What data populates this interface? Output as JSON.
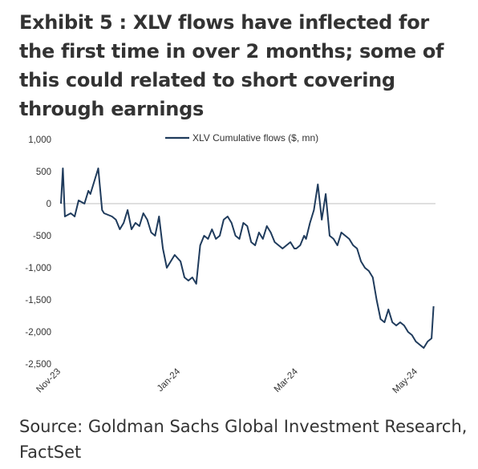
{
  "title": "Exhibit 5 : XLV flows have inflected for the first time in over 2 months; some of this could related to short covering through earnings",
  "source": "Source: Goldman Sachs Global Investment Research, FactSet",
  "colors": {
    "series": "#1f3b5c",
    "zero_line": "#bfbfbf",
    "text": "#333333"
  },
  "chart_data": {
    "type": "line",
    "legend": "top-center",
    "grid": false,
    "xlabel": "",
    "ylabel": "",
    "ylim": [
      -2500,
      1000
    ],
    "yticks": [
      1000,
      500,
      0,
      -500,
      -1000,
      -1500,
      -2000,
      -2500
    ],
    "ytick_labels": [
      "1,000",
      "500",
      "0",
      "-500",
      "-1,000",
      "-1,500",
      "-2,000",
      "-2,500"
    ],
    "xlim": [
      "2023-11-01",
      "2024-05-10"
    ],
    "xticks": [
      "2023-11-01",
      "2024-01-01",
      "2024-03-01",
      "2024-05-01"
    ],
    "xtick_labels": [
      "Nov-23",
      "Jan-24",
      "Mar-24",
      "May-24"
    ],
    "series": [
      {
        "name": "XLV Cumulative flows ($, mn)",
        "x": [
          "2023-11-01",
          "2023-11-02",
          "2023-11-03",
          "2023-11-06",
          "2023-11-08",
          "2023-11-10",
          "2023-11-13",
          "2023-11-15",
          "2023-11-16",
          "2023-11-20",
          "2023-11-22",
          "2023-11-23",
          "2023-11-27",
          "2023-11-29",
          "2023-12-01",
          "2023-12-03",
          "2023-12-05",
          "2023-12-07",
          "2023-12-09",
          "2023-12-11",
          "2023-12-13",
          "2023-12-15",
          "2023-12-17",
          "2023-12-19",
          "2023-12-21",
          "2023-12-23",
          "2023-12-25",
          "2023-12-27",
          "2023-12-29",
          "2024-01-01",
          "2024-01-03",
          "2024-01-05",
          "2024-01-07",
          "2024-01-09",
          "2024-01-11",
          "2024-01-13",
          "2024-01-15",
          "2024-01-17",
          "2024-01-19",
          "2024-01-21",
          "2024-01-23",
          "2024-01-25",
          "2024-01-27",
          "2024-01-29",
          "2024-01-31",
          "2024-02-02",
          "2024-02-04",
          "2024-02-06",
          "2024-02-08",
          "2024-02-10",
          "2024-02-12",
          "2024-02-14",
          "2024-02-16",
          "2024-02-18",
          "2024-02-20",
          "2024-02-22",
          "2024-02-24",
          "2024-02-26",
          "2024-02-28",
          "2024-02-29",
          "2024-03-02",
          "2024-03-04",
          "2024-03-05",
          "2024-03-07",
          "2024-03-09",
          "2024-03-11",
          "2024-03-13",
          "2024-03-15",
          "2024-03-17",
          "2024-03-19",
          "2024-03-21",
          "2024-03-23",
          "2024-03-25",
          "2024-03-27",
          "2024-03-29",
          "2024-03-31",
          "2024-04-02",
          "2024-04-04",
          "2024-04-06",
          "2024-04-08",
          "2024-04-10",
          "2024-04-12",
          "2024-04-14",
          "2024-04-16",
          "2024-04-18",
          "2024-04-20",
          "2024-04-22",
          "2024-04-24",
          "2024-04-26",
          "2024-04-28",
          "2024-04-30",
          "2024-05-02",
          "2024-05-04",
          "2024-05-06",
          "2024-05-08",
          "2024-05-09"
        ],
        "values": [
          0,
          550,
          -200,
          -150,
          -200,
          50,
          0,
          200,
          150,
          550,
          -100,
          -150,
          -200,
          -250,
          -400,
          -300,
          -100,
          -400,
          -300,
          -350,
          -150,
          -250,
          -450,
          -500,
          -200,
          -700,
          -1000,
          -900,
          -800,
          -900,
          -1150,
          -1200,
          -1150,
          -1250,
          -650,
          -500,
          -550,
          -400,
          -550,
          -500,
          -250,
          -200,
          -300,
          -500,
          -550,
          -300,
          -350,
          -600,
          -650,
          -450,
          -550,
          -350,
          -450,
          -600,
          -650,
          -700,
          -650,
          -600,
          -700,
          -700,
          -650,
          -500,
          -550,
          -300,
          -100,
          300,
          -250,
          150,
          -500,
          -550,
          -650,
          -450,
          -500,
          -550,
          -650,
          -700,
          -900,
          -1000,
          -1050,
          -1150,
          -1500,
          -1800,
          -1850,
          -1650,
          -1850,
          -1900,
          -1850,
          -1900,
          -2000,
          -2050,
          -2150,
          -2200,
          -2250,
          -2150,
          -2100,
          -1600
        ]
      }
    ]
  }
}
